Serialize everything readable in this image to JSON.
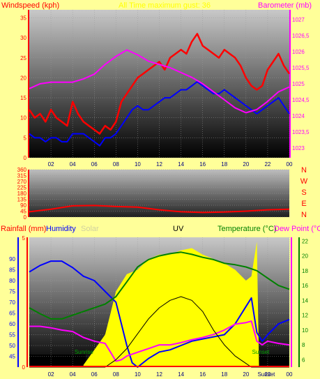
{
  "chart_data": [
    {
      "type": "line",
      "title": "All Time maximum gust: 36 ",
      "ylabel_left": "Windspeed (kph)",
      "ylabel_right": "Barometer (mb)",
      "x_ticks": [
        "02",
        "04",
        "06",
        "08",
        "10",
        "12",
        "14",
        "16",
        "18",
        "20",
        "22",
        "00"
      ],
      "left_ylim": [
        0,
        37
      ],
      "left_ticks": [
        "0",
        "5",
        "10",
        "15",
        "20",
        "25",
        "30",
        "35"
      ],
      "right_ylim": [
        1022.7,
        1027.3
      ],
      "right_ticks": [
        "1023",
        "1023,5",
        "1024",
        "1024,5",
        "1025",
        "1025,5",
        "1026",
        "1026,5",
        "1027"
      ],
      "grid": true,
      "series": [
        {
          "color": "#ff0000",
          "axis": "left",
          "x": [
            0,
            0.5,
            1,
            1.5,
            2,
            2.5,
            3,
            3.5,
            4,
            4.5,
            5,
            5.5,
            6,
            6.5,
            7,
            7.5,
            8,
            8.5,
            9,
            9.5,
            10,
            10.5,
            11,
            11.5,
            12,
            12.5,
            13,
            13.5,
            14,
            14.5,
            15,
            15.5,
            16,
            16.5,
            17,
            17.5,
            18,
            18.5,
            19,
            19.5,
            20,
            20.5,
            21,
            21.5,
            22,
            22.5,
            23,
            23.5,
            24
          ],
          "values": [
            12,
            10,
            11,
            9,
            12,
            10,
            9,
            8,
            14,
            11,
            9,
            8,
            7,
            6,
            8,
            7,
            9,
            14,
            16,
            18,
            20,
            21,
            22,
            23,
            24,
            22,
            25,
            26,
            27,
            26,
            29,
            31,
            28,
            27,
            26,
            25,
            27,
            26,
            25,
            23,
            20,
            18,
            17,
            18,
            22,
            24,
            26,
            23,
            21
          ]
        },
        {
          "color": "#0000ff",
          "axis": "left",
          "x": [
            0,
            0.5,
            1,
            1.5,
            2,
            2.5,
            3,
            3.5,
            4,
            4.5,
            5,
            5.5,
            6,
            6.5,
            7,
            7.5,
            8,
            8.5,
            9,
            9.5,
            10,
            10.5,
            11,
            11.5,
            12,
            12.5,
            13,
            13.5,
            14,
            14.5,
            15,
            15.5,
            16,
            16.5,
            17,
            17.5,
            18,
            18.5,
            19,
            19.5,
            20,
            20.5,
            21,
            21.5,
            22,
            22.5,
            23,
            23.5,
            24
          ],
          "values": [
            6,
            5,
            5,
            4,
            5,
            5,
            4,
            4,
            6,
            6,
            6,
            5,
            4,
            3,
            5,
            5,
            6,
            8,
            10,
            12,
            13,
            12,
            12,
            13,
            14,
            15,
            15,
            16,
            17,
            17,
            18,
            19,
            18,
            17,
            16,
            16,
            17,
            16,
            15,
            14,
            13,
            12,
            11,
            12,
            13,
            14,
            15,
            13,
            11
          ]
        },
        {
          "color": "#ff00ff",
          "axis": "right",
          "x": [
            0,
            1,
            2,
            3,
            4,
            5,
            6,
            7,
            8,
            9,
            10,
            11,
            12,
            13,
            14,
            15,
            16,
            17,
            18,
            19,
            20,
            21,
            22,
            23,
            24
          ],
          "values": [
            1024.85,
            1025.0,
            1025.05,
            1025.05,
            1025.05,
            1025.15,
            1025.3,
            1025.6,
            1025.85,
            1026.05,
            1025.9,
            1025.7,
            1025.6,
            1025.5,
            1025.35,
            1025.2,
            1025.0,
            1024.75,
            1024.5,
            1024.25,
            1024.1,
            1024.2,
            1024.45,
            1024.75,
            1024.9
          ]
        }
      ]
    },
    {
      "type": "line",
      "ylabel_right_letters": [
        "N",
        "W",
        "S",
        "E",
        "N"
      ],
      "ylim": [
        0,
        360
      ],
      "left_ticks": [
        "0",
        "45",
        "90",
        "135",
        "180",
        "225",
        "270",
        "315",
        "360"
      ],
      "x_ticks": [
        "02",
        "04",
        "06",
        "08",
        "10",
        "12",
        "14",
        "16",
        "18",
        "20",
        "22",
        "00"
      ],
      "series": [
        {
          "color": "#ff0000",
          "x": [
            0,
            2,
            4,
            6,
            8,
            10,
            12,
            14,
            16,
            18,
            20,
            22,
            24
          ],
          "values": [
            40,
            60,
            85,
            88,
            80,
            75,
            55,
            40,
            35,
            38,
            45,
            55,
            60
          ]
        }
      ]
    },
    {
      "type": "line",
      "labels": {
        "rain": "Rainfall (mm)",
        "hum": "Humidity",
        "solar": "Solar",
        "uv": "UV",
        "temp": "Temperature (°C)",
        "dew": "Dew Point (°C"
      },
      "left_rain_ticks": [
        "0",
        "5"
      ],
      "humidity_ylim": [
        40,
        100
      ],
      "humidity_ticks": [
        "45",
        "50",
        "55",
        "60",
        "65",
        "70",
        "75",
        "80",
        "85",
        "90"
      ],
      "temp_ylim": [
        5,
        22.5
      ],
      "temp_ticks": [
        "6",
        "8",
        "10",
        "12",
        "14",
        "16",
        "18",
        "20",
        "22"
      ],
      "x_ticks": [
        "02",
        "04",
        "06",
        "08",
        "10",
        "12",
        "14",
        "16",
        "18",
        "20",
        "22",
        "00"
      ],
      "sunrise_label": "Sunrise",
      "sunset_label": "Sunset",
      "sunset_short": "Sunset",
      "sunrise_hour": 5.2,
      "sunset_hour": 21.2,
      "series": [
        {
          "name": "Humidity",
          "color": "#0000ff",
          "axis": "humidity",
          "x": [
            0,
            1,
            2,
            3,
            4,
            5,
            6,
            7,
            8,
            8.5,
            9,
            9.5,
            10,
            11,
            12,
            13,
            14,
            15,
            16,
            17,
            18,
            19,
            20,
            20.5,
            21,
            21.5,
            22,
            23,
            24
          ],
          "values": [
            84,
            87,
            89,
            89,
            86,
            82,
            80,
            75,
            70,
            60,
            50,
            42,
            40,
            44,
            47,
            48,
            50,
            52,
            53,
            54,
            55,
            60,
            68,
            72,
            56,
            52,
            55,
            60,
            62
          ]
        },
        {
          "name": "Temperature",
          "color": "#008000",
          "axis": "temp",
          "x": [
            0,
            1,
            2,
            3,
            4,
            5,
            6,
            7,
            8,
            9,
            10,
            11,
            12,
            13,
            14,
            15,
            16,
            17,
            18,
            19,
            20,
            21,
            22,
            23,
            24
          ],
          "values": [
            13,
            12.2,
            11.5,
            11.5,
            12,
            12.5,
            13,
            13.5,
            14.5,
            16.5,
            18.5,
            19.5,
            20,
            20.3,
            20.5,
            20.2,
            19.8,
            19.5,
            19,
            18.8,
            18.5,
            18,
            17,
            16,
            15.5
          ]
        },
        {
          "name": "Dew Point",
          "color": "#ff00ff",
          "axis": "temp",
          "x": [
            0,
            1,
            2,
            3,
            4,
            5,
            6,
            7,
            7.5,
            8,
            8.5,
            9,
            10,
            11,
            12,
            13,
            14,
            15,
            16,
            17,
            18,
            19,
            20,
            20.5,
            21,
            21.5,
            22,
            23,
            24
          ],
          "values": [
            10.5,
            10.5,
            10.3,
            10,
            9.8,
            9,
            8.5,
            8.2,
            7,
            5.8,
            6,
            6.5,
            7,
            7.5,
            8,
            8,
            8.3,
            8.7,
            9,
            9.4,
            10,
            10.8,
            11,
            11.2,
            8.5,
            8,
            8.5,
            8.2,
            8
          ]
        },
        {
          "name": "UV",
          "color": "#000000",
          "axis": "temp",
          "x": [
            0,
            7,
            8,
            9,
            10,
            11,
            12,
            13,
            14,
            15,
            16,
            17,
            18,
            19,
            20,
            20.5,
            24
          ],
          "values": [
            5,
            5,
            6,
            7.5,
            9.5,
            11.5,
            13,
            14,
            14.5,
            14,
            12.5,
            10,
            8,
            6.5,
            5.5,
            5,
            5
          ]
        },
        {
          "name": "Solar",
          "color": "#ffff00",
          "axis": "humidity",
          "x": [
            5,
            6,
            7,
            7.5,
            8,
            9,
            10,
            11,
            12,
            13,
            14,
            15,
            16,
            17,
            18,
            19,
            20,
            20.5,
            21,
            21.2
          ],
          "values": [
            41,
            48,
            55,
            65,
            75,
            83,
            85,
            90,
            92,
            92,
            94,
            95,
            92,
            90,
            88,
            85,
            80,
            82,
            98,
            41
          ]
        }
      ]
    }
  ]
}
